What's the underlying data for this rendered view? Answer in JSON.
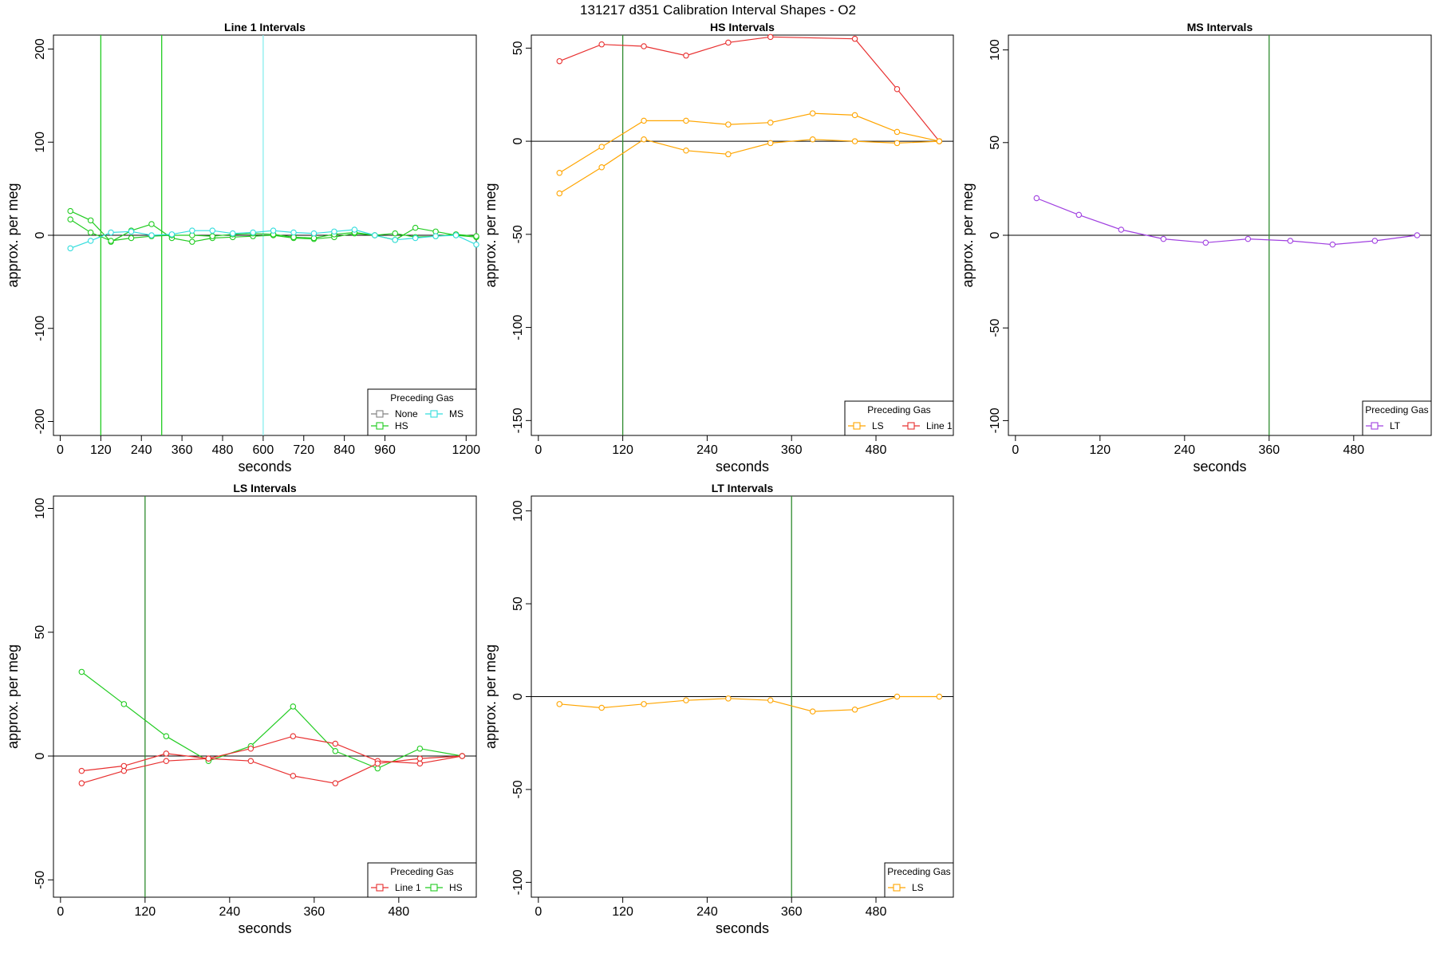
{
  "figure_title": "131217   d351   Calibration Interval Shapes - O2",
  "colors": {
    "none": "#808080",
    "hs": "#22cc22",
    "ms": "#33dddd",
    "ls": "#ffa500",
    "line1": "#e83030",
    "lt": "#a040e0",
    "zero_line": "#000000"
  },
  "chart_data": [
    {
      "type": "line",
      "title": "Line 1 Intervals",
      "xlabel": "seconds",
      "ylabel": "approx. per meg",
      "xlim": [
        -20,
        1230
      ],
      "ylim": [
        -215,
        215
      ],
      "xticks": [
        0,
        120,
        240,
        360,
        480,
        600,
        720,
        840,
        960,
        1200
      ],
      "yticks": [
        -200,
        -100,
        0,
        100,
        200
      ],
      "vlines": [
        {
          "x": 120,
          "color": "#22cc22"
        },
        {
          "x": 300,
          "color": "#22cc22"
        },
        {
          "x": 600,
          "color": "#88eeee"
        }
      ],
      "legend": {
        "title": "Preceding Gas",
        "placement": "bottom-right",
        "columns": 2,
        "entries": [
          {
            "label": "None",
            "color": "#808080"
          },
          {
            "label": "MS",
            "color": "#33dddd"
          },
          {
            "label": "HS",
            "color": "#22cc22"
          }
        ]
      },
      "series": [
        {
          "color": "#22cc22",
          "x": [
            30,
            90,
            150,
            210,
            270,
            330,
            390,
            450,
            510,
            570,
            630,
            690,
            750,
            810,
            870,
            930,
            990,
            1050,
            1110,
            1170,
            1230
          ],
          "y": [
            26,
            16,
            -7,
            5,
            12,
            -3,
            -7,
            -3,
            -2,
            -1,
            0,
            -3,
            -4,
            -2,
            2,
            0,
            -5,
            8,
            4,
            0,
            -2
          ]
        },
        {
          "color": "#22cc22",
          "x": [
            30,
            90,
            150,
            210,
            270,
            330,
            390,
            450,
            510,
            570,
            630,
            690,
            750,
            810,
            870,
            930,
            990,
            1050,
            1110,
            1170,
            1230
          ],
          "y": [
            17,
            3,
            -6,
            -3,
            -1,
            0,
            0,
            -1,
            1,
            2,
            1,
            -2,
            -3,
            1,
            3,
            0,
            2,
            -2,
            -1,
            1,
            -1
          ]
        },
        {
          "color": "#33dddd",
          "x": [
            30,
            90,
            150,
            210,
            270,
            330,
            390,
            450,
            510,
            570,
            630,
            690,
            750,
            810,
            870,
            930,
            990,
            1050,
            1110,
            1170,
            1230
          ],
          "y": [
            -14,
            -6,
            3,
            4,
            0,
            1,
            5,
            5,
            2,
            3,
            5,
            3,
            2,
            4,
            6,
            0,
            -5,
            -3,
            -1,
            0,
            -10
          ]
        }
      ]
    },
    {
      "type": "line",
      "title": "HS Intervals",
      "xlabel": "seconds",
      "ylabel": "approx. per meg",
      "xlim": [
        -10,
        590
      ],
      "ylim": [
        -158,
        57
      ],
      "xticks": [
        0,
        120,
        240,
        360,
        480
      ],
      "yticks": [
        -150,
        -100,
        -50,
        0,
        50
      ],
      "vlines": [
        {
          "x": 120,
          "color": "#2e8b2e"
        }
      ],
      "legend": {
        "title": "Preceding Gas",
        "placement": "bottom-right",
        "columns": 2,
        "entries": [
          {
            "label": "LS",
            "color": "#ffa500"
          },
          {
            "label": "Line 1",
            "color": "#e83030"
          }
        ]
      },
      "series": [
        {
          "color": "#e83030",
          "x": [
            30,
            90,
            150,
            210,
            270,
            330,
            450,
            510,
            570
          ],
          "y": [
            43,
            52,
            51,
            46,
            53,
            56,
            55,
            28,
            0
          ]
        },
        {
          "color": "#ffa500",
          "x": [
            30,
            90,
            150,
            210,
            270,
            330,
            390,
            450,
            510,
            570
          ],
          "y": [
            -17,
            -3,
            11,
            11,
            9,
            10,
            15,
            14,
            5,
            0
          ]
        },
        {
          "color": "#ffa500",
          "x": [
            30,
            90,
            150,
            210,
            270,
            330,
            390,
            450,
            510,
            570
          ],
          "y": [
            -28,
            -14,
            1,
            -5,
            -7,
            -1,
            1,
            0,
            -1,
            0
          ]
        }
      ]
    },
    {
      "type": "line",
      "title": "MS Intervals",
      "xlabel": "seconds",
      "ylabel": "approx. per meg",
      "xlim": [
        -10,
        590
      ],
      "ylim": [
        -108,
        108
      ],
      "xticks": [
        0,
        120,
        240,
        360,
        480
      ],
      "yticks": [
        -100,
        -50,
        0,
        50,
        100
      ],
      "vlines": [
        {
          "x": 360,
          "color": "#2e8b2e"
        }
      ],
      "legend": {
        "title": "Preceding Gas",
        "placement": "bottom-right",
        "columns": 1,
        "entries": [
          {
            "label": "LT",
            "color": "#a040e0"
          }
        ]
      },
      "series": [
        {
          "color": "#a040e0",
          "x": [
            30,
            90,
            150,
            210,
            270,
            330,
            390,
            450,
            510,
            570
          ],
          "y": [
            20,
            11,
            3,
            -2,
            -4,
            -2,
            -3,
            -5,
            -3,
            0
          ]
        }
      ]
    },
    {
      "type": "line",
      "title": "LS Intervals",
      "xlabel": "seconds",
      "ylabel": "approx. per meg",
      "xlim": [
        -10,
        590
      ],
      "ylim": [
        -57,
        105
      ],
      "xticks": [
        0,
        120,
        240,
        360,
        480
      ],
      "yticks": [
        -50,
        0,
        50,
        100
      ],
      "vlines": [
        {
          "x": 120,
          "color": "#2e8b2e"
        }
      ],
      "legend": {
        "title": "Preceding Gas",
        "placement": "bottom-right",
        "columns": 2,
        "entries": [
          {
            "label": "Line 1",
            "color": "#e83030"
          },
          {
            "label": "HS",
            "color": "#22cc22"
          }
        ]
      },
      "series": [
        {
          "color": "#22cc22",
          "x": [
            30,
            90,
            150,
            210,
            270,
            330,
            390,
            450,
            510,
            570
          ],
          "y": [
            34,
            21,
            8,
            -2,
            4,
            20,
            2,
            -5,
            3,
            0
          ]
        },
        {
          "color": "#e83030",
          "x": [
            30,
            90,
            150,
            210,
            270,
            330,
            390,
            450,
            510,
            570
          ],
          "y": [
            -6,
            -4,
            1,
            -1,
            3,
            8,
            5,
            -2,
            -3,
            0
          ]
        },
        {
          "color": "#e83030",
          "x": [
            30,
            90,
            150,
            210,
            270,
            330,
            390,
            450,
            510,
            570
          ],
          "y": [
            -11,
            -6,
            -2,
            -1,
            -2,
            -8,
            -11,
            -3,
            -1,
            0
          ]
        }
      ]
    },
    {
      "type": "line",
      "title": "LT Intervals",
      "xlabel": "seconds",
      "ylabel": "approx. per meg",
      "xlim": [
        -10,
        590
      ],
      "ylim": [
        -108,
        108
      ],
      "xticks": [
        0,
        120,
        240,
        360,
        480
      ],
      "yticks": [
        -100,
        -50,
        0,
        50,
        100
      ],
      "vlines": [
        {
          "x": 360,
          "color": "#2e8b2e"
        }
      ],
      "legend": {
        "title": "Preceding Gas",
        "placement": "bottom-right",
        "columns": 1,
        "entries": [
          {
            "label": "LS",
            "color": "#ffa500"
          }
        ]
      },
      "series": [
        {
          "color": "#ffa500",
          "x": [
            30,
            90,
            150,
            210,
            270,
            330,
            390,
            450,
            510,
            570
          ],
          "y": [
            -4,
            -6,
            -4,
            -2,
            -1,
            -2,
            -8,
            -7,
            0,
            0
          ]
        }
      ]
    }
  ]
}
